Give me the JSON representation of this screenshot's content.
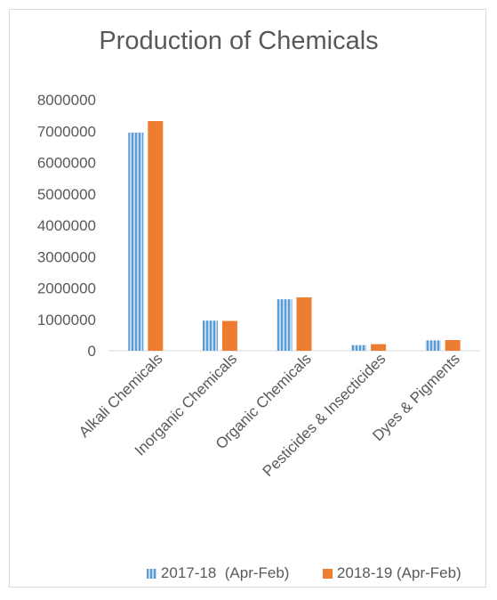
{
  "chart_data": {
    "type": "bar",
    "title": "Production of Chemicals",
    "xlabel": "",
    "ylabel": "",
    "ylim": [
      0,
      8000000
    ],
    "yticks": [
      0,
      1000000,
      2000000,
      3000000,
      4000000,
      5000000,
      6000000,
      7000000,
      8000000
    ],
    "grid": false,
    "legend_position": "bottom",
    "categories": [
      "Alkali Chemicals",
      "Inorganic Chemicals",
      "Organic Chemicals",
      "Pesticides & Insecticides",
      "Dyes & Pigments"
    ],
    "series": [
      {
        "name": "2017-18  (Apr-Feb)",
        "color": "#5b9bd5",
        "pattern": "vertical-stripes",
        "values": [
          6950000,
          960000,
          1640000,
          180000,
          330000
        ]
      },
      {
        "name": "2018-19 (Apr-Feb)",
        "color": "#ed7d31",
        "pattern": "solid",
        "values": [
          7320000,
          950000,
          1700000,
          210000,
          340000
        ]
      }
    ]
  }
}
